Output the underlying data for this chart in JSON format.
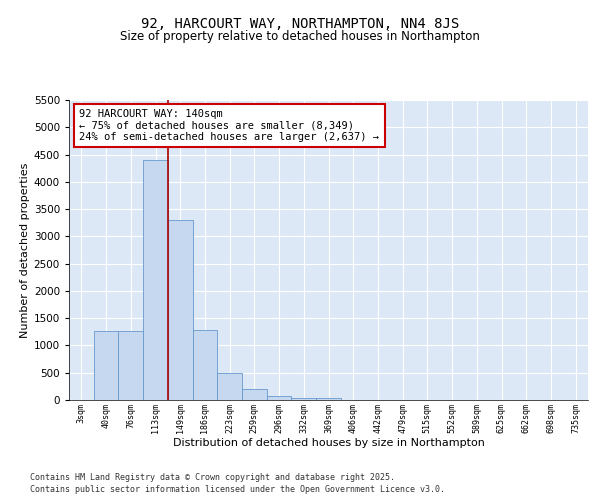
{
  "title": "92, HARCOURT WAY, NORTHAMPTON, NN4 8JS",
  "subtitle": "Size of property relative to detached houses in Northampton",
  "xlabel": "Distribution of detached houses by size in Northampton",
  "ylabel": "Number of detached properties",
  "categories": [
    "3sqm",
    "40sqm",
    "76sqm",
    "113sqm",
    "149sqm",
    "186sqm",
    "223sqm",
    "259sqm",
    "296sqm",
    "332sqm",
    "369sqm",
    "406sqm",
    "442sqm",
    "479sqm",
    "515sqm",
    "552sqm",
    "589sqm",
    "625sqm",
    "662sqm",
    "698sqm",
    "735sqm"
  ],
  "values": [
    0,
    1270,
    1270,
    4400,
    3300,
    1280,
    500,
    200,
    80,
    40,
    30,
    0,
    0,
    0,
    0,
    0,
    0,
    0,
    0,
    0,
    0
  ],
  "bar_color": "#c5d8f0",
  "bar_edge_color": "#6699cc",
  "vline_x": 3.5,
  "vline_color": "#aa0000",
  "annotation_text": "92 HARCOURT WAY: 140sqm\n← 75% of detached houses are smaller (8,349)\n24% of semi-detached houses are larger (2,637) →",
  "annotation_box_color": "#ffffff",
  "annotation_box_edge_color": "#cc0000",
  "ylim": [
    0,
    5500
  ],
  "yticks": [
    0,
    500,
    1000,
    1500,
    2000,
    2500,
    3000,
    3500,
    4000,
    4500,
    5000,
    5500
  ],
  "bg_color": "#dce8f5",
  "grid_color": "#ffffff",
  "footer_line1": "Contains HM Land Registry data © Crown copyright and database right 2025.",
  "footer_line2": "Contains public sector information licensed under the Open Government Licence v3.0.",
  "title_fontsize": 10,
  "subtitle_fontsize": 8.5,
  "xlabel_fontsize": 8,
  "ylabel_fontsize": 8,
  "annotation_fontsize": 7.5,
  "footer_fontsize": 6
}
